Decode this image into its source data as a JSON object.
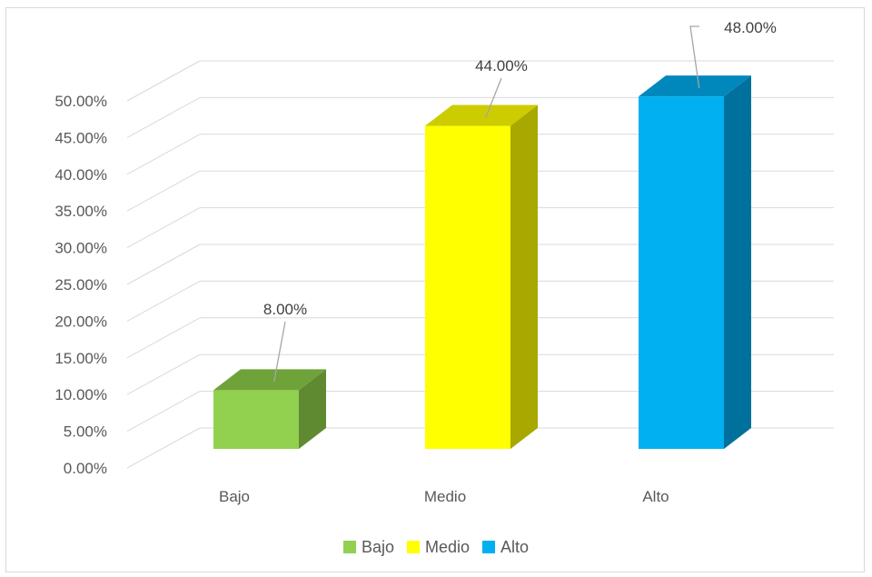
{
  "chart_data": {
    "type": "bar",
    "style": "3d-column",
    "categories": [
      "Bajo",
      "Medio",
      "Alto"
    ],
    "values": [
      8.0,
      44.0,
      48.0
    ],
    "data_labels": [
      "8.00%",
      "44.00%",
      "48.00%"
    ],
    "y_ticks": [
      "0.00%",
      "5.00%",
      "10.00%",
      "15.00%",
      "20.00%",
      "25.00%",
      "30.00%",
      "35.00%",
      "40.00%",
      "45.00%",
      "50.00%"
    ],
    "ylim": [
      0,
      50
    ],
    "grid": true,
    "legend": {
      "position": "bottom",
      "entries": [
        "Bajo",
        "Medio",
        "Alto"
      ]
    },
    "colors": {
      "Bajo": {
        "front": "#92d050",
        "top": "#70a23a",
        "side": "#5f8a32"
      },
      "Medio": {
        "front": "#ffff00",
        "top": "#cccc00",
        "side": "#a8a800"
      },
      "Alto": {
        "front": "#00b0f0",
        "top": "#0088bd",
        "side": "#00709c"
      }
    }
  }
}
